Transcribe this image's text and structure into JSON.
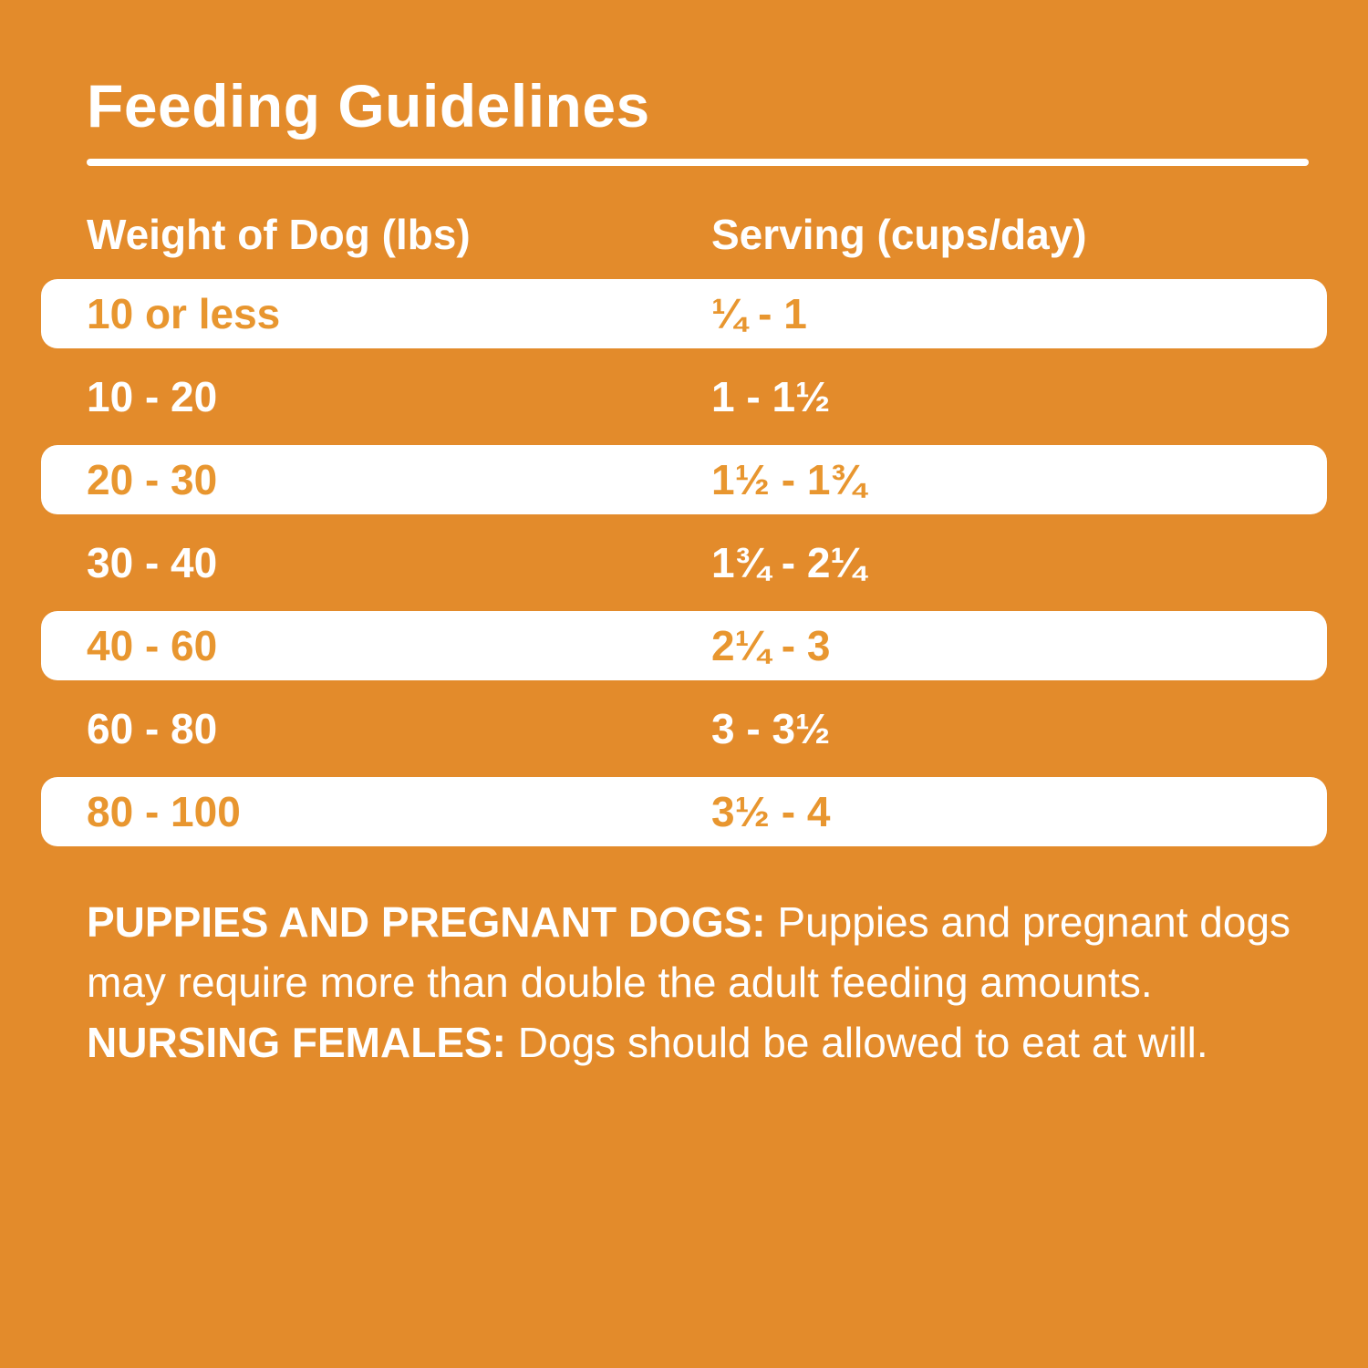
{
  "title": "Feeding Guidelines",
  "colors": {
    "background_orange": "#E38B2B",
    "row_text_orange": "#E8962F",
    "text_white": "#FFFFFF"
  },
  "table": {
    "headers": {
      "weight": "Weight of Dog (lbs)",
      "serving": "Serving (cups/day)"
    },
    "rows": [
      {
        "weight": "10 or less",
        "serving": "¼ - 1"
      },
      {
        "weight": "10 - 20",
        "serving": "1 - 1½"
      },
      {
        "weight": "20 - 30",
        "serving": "1½ - 1¾"
      },
      {
        "weight": "30 - 40",
        "serving": "1¾ - 2¼"
      },
      {
        "weight": "40 - 60",
        "serving": "2¼ - 3"
      },
      {
        "weight": "60 - 80",
        "serving": "3 - 3½"
      },
      {
        "weight": "80 - 100",
        "serving": "3½ - 4"
      }
    ]
  },
  "chart_data": {
    "type": "table",
    "title": "Feeding Guidelines",
    "columns": [
      "Weight of Dog (lbs)",
      "Serving (cups/day)"
    ],
    "rows": [
      [
        "10 or less",
        "¼ - 1"
      ],
      [
        "10 - 20",
        "1 - 1½"
      ],
      [
        "20 - 30",
        "1½ - 1¾"
      ],
      [
        "30 - 40",
        "1¾ - 2¼"
      ],
      [
        "40 - 60",
        "2¼ - 3"
      ],
      [
        "60 - 80",
        "3 - 3½"
      ],
      [
        "80 - 100",
        "3½ - 4"
      ]
    ],
    "serving_min_cups": [
      0.25,
      1,
      1.5,
      1.75,
      2.25,
      3,
      3.5
    ],
    "serving_max_cups": [
      1,
      1.5,
      1.75,
      2.25,
      3,
      3.5,
      4
    ]
  },
  "notes": {
    "puppies_label": "PUPPIES AND PREGNANT DOGS:",
    "puppies_text": " Puppies and pregnant dogs may require more than double the adult feeding amounts. ",
    "nursing_label": "NURSING FEMALES:",
    "nursing_text": " Dogs should be allowed to eat at will."
  }
}
